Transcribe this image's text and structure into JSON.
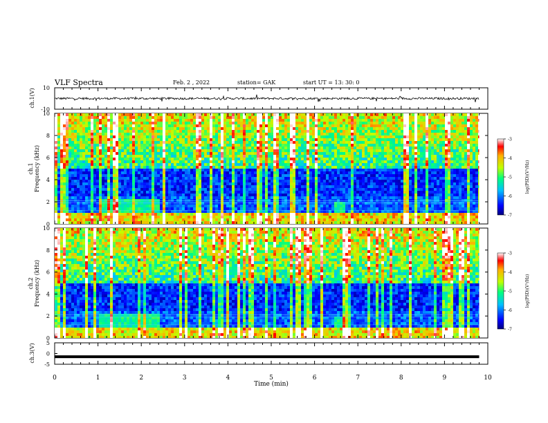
{
  "header": {
    "title": "VLF Spectra",
    "date": "Feb. 2 , 2022",
    "station": "station= GAK",
    "start": "start UT = 13: 30: 0"
  },
  "chart_data": [
    {
      "type": "line",
      "panel": "ch1-waveform",
      "ylabel": "ch.1(V)",
      "ylim": [
        -10,
        10
      ],
      "yticks": [
        "10",
        "-10"
      ],
      "xlim": [
        0,
        10
      ],
      "series": [
        {
          "name": "ch.1 amplitude",
          "x": [
            0,
            9.8
          ],
          "approx_level": 0,
          "noise_amplitude": 2
        }
      ]
    },
    {
      "type": "heatmap",
      "panel": "ch1-spectrogram",
      "ylabel_line1": "ch.1",
      "ylabel_line2": "Frequency (kHz)",
      "ylim": [
        0,
        10
      ],
      "yticks": [
        "0",
        "2",
        "4",
        "6",
        "8",
        "10"
      ],
      "xlim": [
        0,
        10
      ],
      "data_end_min": 9.8,
      "colorbar": {
        "label": "log(PSD)(V²/Hz)",
        "range": [
          -7,
          -3
        ],
        "ticks": [
          "-3",
          "-4",
          "-5",
          "-6",
          "-7"
        ]
      }
    },
    {
      "type": "heatmap",
      "panel": "ch2-spectrogram",
      "ylabel_line1": "ch.2",
      "ylabel_line2": "Frequency (kHz)",
      "ylim": [
        0,
        10
      ],
      "yticks": [
        "0",
        "2",
        "4",
        "6",
        "8",
        "10"
      ],
      "xlim": [
        0,
        10
      ],
      "data_end_min": 9.8,
      "colorbar": {
        "label": "log(PSD)(V²/Hz)",
        "range": [
          -7,
          -3
        ],
        "ticks": [
          "-3",
          "-4",
          "-5",
          "-6",
          "-7"
        ]
      }
    },
    {
      "type": "line",
      "panel": "ch3-waveform",
      "ylabel": "ch.3(V)",
      "ylim": [
        -5,
        5
      ],
      "yticks": [
        "5",
        "0",
        "-5"
      ],
      "xlim": [
        0,
        10
      ],
      "series": [
        {
          "name": "ch.3 level",
          "x": [
            0,
            9.8
          ],
          "y": [
            -1.5,
            -1.5
          ]
        }
      ]
    }
  ],
  "xaxis": {
    "label": "Time (min)",
    "ticks": [
      "0",
      "1",
      "2",
      "3",
      "4",
      "5",
      "6",
      "7",
      "8",
      "9",
      "10"
    ]
  }
}
